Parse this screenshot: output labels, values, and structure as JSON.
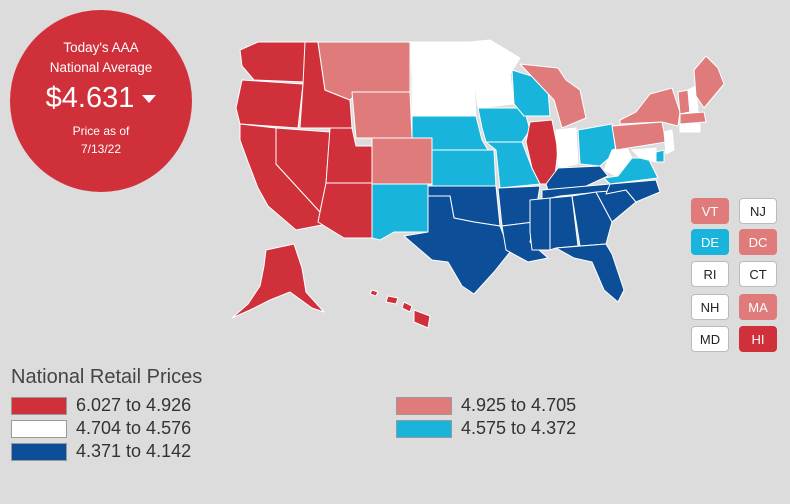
{
  "badge": {
    "line1": "Today's AAA",
    "line2": "National Average",
    "price": "$4.631",
    "line3": "Price as of",
    "line4": "7/13/22"
  },
  "colors": {
    "dark_red": "#d0303a",
    "light_red": "#df7b7b",
    "white": "#ffffff",
    "light_blue": "#18b4dc",
    "dark_blue": "#0c4f98"
  },
  "chips": [
    {
      "label": "VT",
      "color": "light_red"
    },
    {
      "label": "NJ",
      "color": "white"
    },
    {
      "label": "DE",
      "color": "light_blue"
    },
    {
      "label": "DC",
      "color": "light_red"
    },
    {
      "label": "RI",
      "color": "white"
    },
    {
      "label": "CT",
      "color": "white"
    },
    {
      "label": "NH",
      "color": "white"
    },
    {
      "label": "MA",
      "color": "light_red"
    },
    {
      "label": "MD",
      "color": "white"
    },
    {
      "label": "HI",
      "color": "dark_red"
    }
  ],
  "legend": {
    "title": "National Retail Prices",
    "items": [
      {
        "label": "6.027 to 4.926",
        "color": "dark_red"
      },
      {
        "label": "4.704 to 4.576",
        "color": "white"
      },
      {
        "label": "4.371 to 4.142",
        "color": "dark_blue"
      },
      {
        "label": "4.925 to 4.705",
        "color": "light_red"
      },
      {
        "label": "4.575 to 4.372",
        "color": "light_blue"
      }
    ]
  }
}
